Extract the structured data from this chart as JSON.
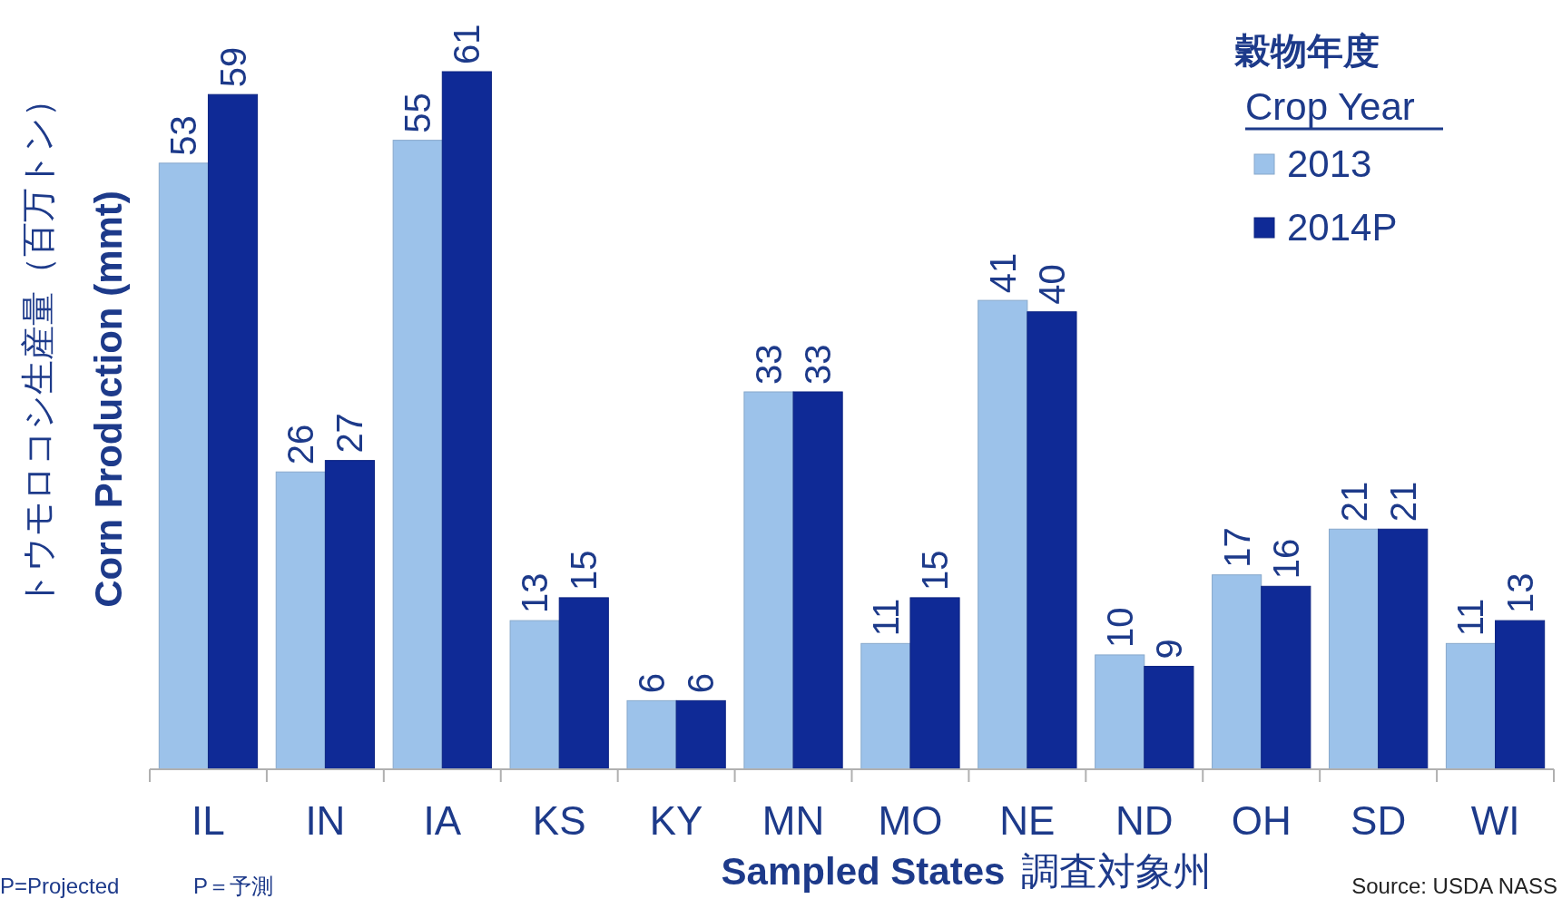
{
  "chart_data": {
    "type": "bar",
    "categories": [
      "IL",
      "IN",
      "IA",
      "KS",
      "KY",
      "MN",
      "MO",
      "NE",
      "ND",
      "OH",
      "SD",
      "WI"
    ],
    "series": [
      {
        "name": "2013",
        "color": "#9cc2ea",
        "values": [
          53,
          26,
          55,
          13,
          6,
          33,
          11,
          41,
          10,
          17,
          21,
          11
        ]
      },
      {
        "name": "2014P",
        "color": "#0f2a96",
        "values": [
          59,
          27,
          61,
          15,
          6,
          33,
          15,
          40,
          9,
          16,
          21,
          13
        ]
      }
    ],
    "data_labels": true,
    "legend": "top right",
    "legend_title": "穀物年度\nCrop Year",
    "ylabel": "トウモロコシ生産量（百万トン）\nCorn Production (mmt)",
    "xlabel": "Sampled States  調査対象州",
    "annotations": [
      "P=Projected",
      "P＝予測",
      "Source: USDA NASS"
    ]
  }
}
